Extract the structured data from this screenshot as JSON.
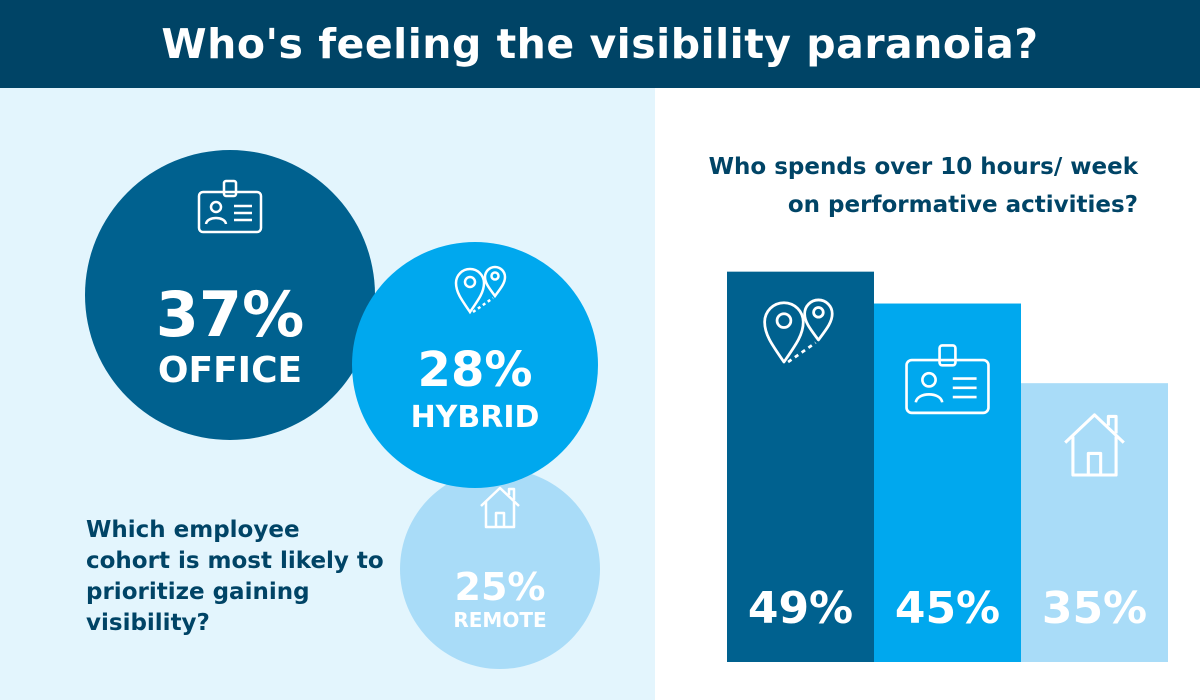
{
  "header": {
    "title": "Who's feeling the visibility paranoia?"
  },
  "left": {
    "question": "Which employee cohort is most likely to prioritize gaining visibility?",
    "cohorts": [
      {
        "name": "office",
        "value": "37%",
        "label": "OFFICE",
        "color": "#00618f",
        "icon": "id-badge-icon"
      },
      {
        "name": "hybrid",
        "value": "28%",
        "label": "HYBRID",
        "color": "#00a8ee",
        "icon": "location-pins-icon"
      },
      {
        "name": "remote",
        "value": "25%",
        "label": "REMOTE",
        "color": "#a9dcf8",
        "icon": "house-icon"
      }
    ]
  },
  "right": {
    "question": "Who spends over 10 hours/ week on performative activities?"
  },
  "chart_data": {
    "type": "bar",
    "title": "Who spends over 10 hours/ week on performative activities?",
    "categories": [
      "Hybrid",
      "Office",
      "Remote"
    ],
    "values": [
      49,
      45,
      35
    ],
    "labels": [
      "49%",
      "45%",
      "35%"
    ],
    "colors": [
      "#00618f",
      "#00a8ee",
      "#a9dcf8"
    ],
    "icons": [
      "location-pins-icon",
      "id-badge-icon",
      "house-icon"
    ],
    "ylim": [
      0,
      59
    ],
    "grid": false,
    "legend": "none"
  }
}
